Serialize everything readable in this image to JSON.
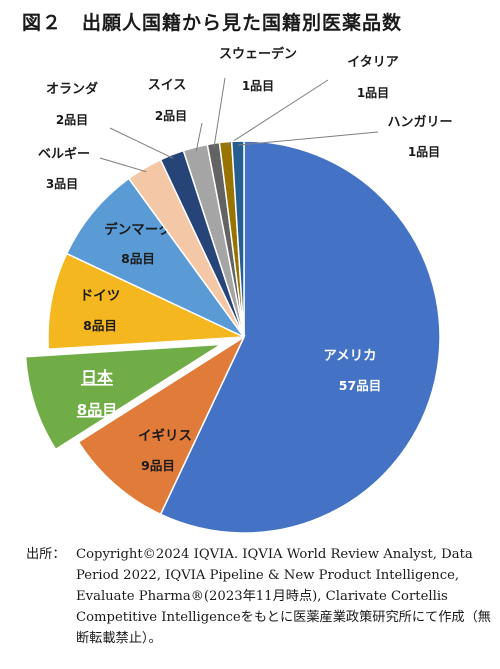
{
  "title": "図２　出願人国籍から見た国籍別医薬品数",
  "source": {
    "label": "出所：",
    "text": "Copyright©2024 IQVIA. IQVIA World Review Analyst, Data Period 2022, IQVIA Pipeline & New Product Intelligence, Evaluate Pharma®(2023年11月時点), Clarivate Cortellis Competitive Intelligenceをもとに医薬産業政策研究所にて作成（無断転載禁止）。"
  },
  "chart_data": {
    "type": "pie",
    "title": "図２　出願人国籍から見た国籍別医薬品数",
    "unit": "品目",
    "start": "12 o'clock",
    "direction": "clockwise",
    "legend": "none",
    "slices": [
      {
        "label": "アメリカ",
        "value": 57,
        "value_label": "57品目",
        "color": "#4472c4"
      },
      {
        "label": "イギリス",
        "value": 9,
        "value_label": "9品目",
        "color": "#e07b39"
      },
      {
        "label": "日本",
        "value": 8,
        "value_label": "8品目",
        "color": "#70ad47",
        "exploded": true,
        "highlighted": true
      },
      {
        "label": "ドイツ",
        "value": 8,
        "value_label": "8品目",
        "color": "#f5b71f"
      },
      {
        "label": "デンマーク",
        "value": 8,
        "value_label": "8品目",
        "color": "#5b9bd5"
      },
      {
        "label": "ベルギー",
        "value": 3,
        "value_label": "3品目",
        "color": "#f4c7a6"
      },
      {
        "label": "オランダ",
        "value": 2,
        "value_label": "2品目",
        "color": "#264478"
      },
      {
        "label": "スイス",
        "value": 2,
        "value_label": "2品目",
        "color": "#a5a5a5"
      },
      {
        "label": "スウェーデン",
        "value": 1,
        "value_label": "1品目",
        "color": "#636363"
      },
      {
        "label": "イタリア",
        "value": 1,
        "value_label": "1品目",
        "color": "#997300"
      },
      {
        "label": "ハンガリー",
        "value": 1,
        "value_label": "1品目",
        "color": "#255e91"
      }
    ]
  }
}
